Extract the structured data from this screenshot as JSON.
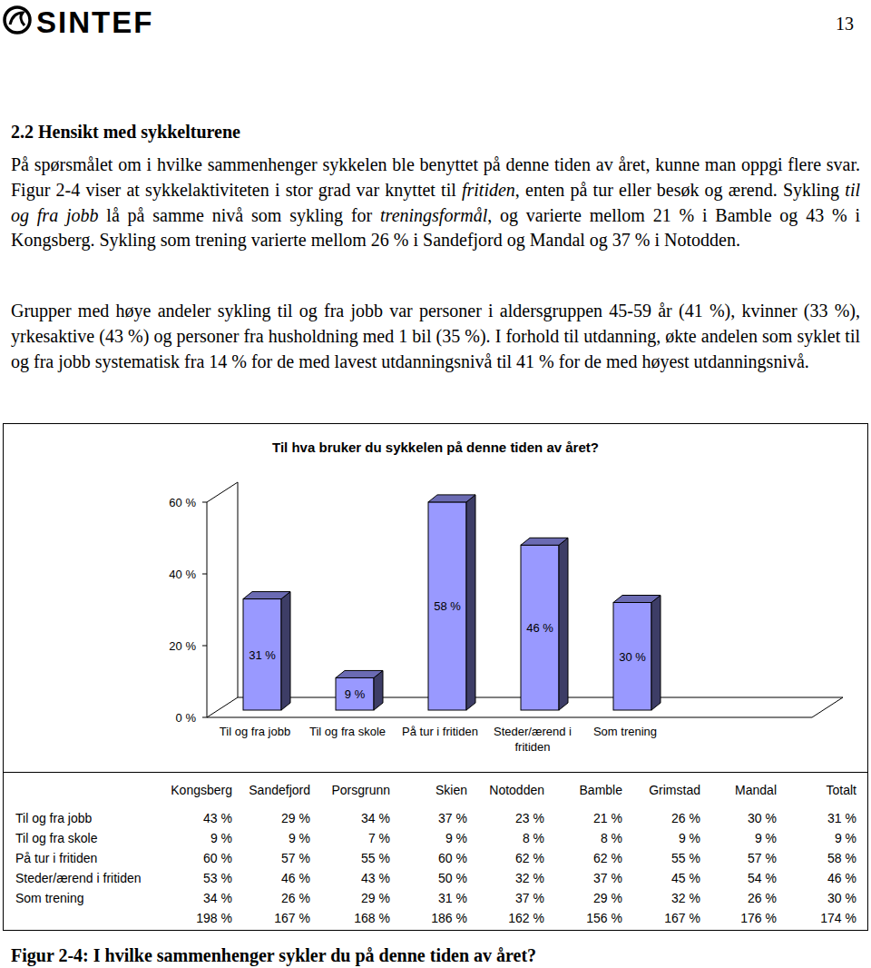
{
  "header": {
    "logo_text": "SINTEF",
    "page_number": "13"
  },
  "section": {
    "heading": "2.2 Hensikt med sykkelturene"
  },
  "paragraphs": [
    {
      "runs": [
        {
          "text": "På spørsmålet om i hvilke sammenhenger sykkelen ble benyttet på denne tiden av året, kunne man oppgi flere svar. Figur 2-4 viser at sykkelaktiviteten i stor grad var knyttet til "
        },
        {
          "text": "fritiden",
          "italic": true
        },
        {
          "text": ", enten på tur eller besøk og ærend. Sykling "
        },
        {
          "text": "til og fra jobb",
          "italic": true
        },
        {
          "text": " lå på samme nivå som sykling for "
        },
        {
          "text": "treningsformål",
          "italic": true
        },
        {
          "text": ", og varierte mellom 21 % i Bamble og 43 % i Kongsberg. Sykling som trening varierte mellom 26 % i Sandefjord og Mandal og 37 % i Notodden."
        }
      ]
    },
    {
      "runs": [
        {
          "text": "Grupper med høye andeler sykling til og fra jobb var personer i aldersgruppen 45-59 år (41 %), kvinner (33 %), yrkesaktive (43 %) og personer fra husholdning med 1 bil (35 %). I forhold til utdanning, økte andelen som syklet til og fra jobb systematisk fra 14 % for de med lavest utdanningsnivå til 41 % for de med høyest utdanningsnivå."
        }
      ]
    }
  ],
  "chart_data": {
    "type": "bar",
    "title": "Til hva bruker du sykkelen på denne tiden av året?",
    "categories": [
      "Til og fra jobb",
      "Til og fra skole",
      "På tur i fritiden",
      "Steder/ærend i fritiden",
      "Som trening"
    ],
    "values": [
      31,
      9,
      58,
      46,
      30
    ],
    "value_labels": [
      "31 %",
      "9 %",
      "58 %",
      "46 %",
      "30 %"
    ],
    "color": "#9999ff",
    "ylim": [
      0,
      60
    ],
    "yticks": [
      {
        "value": 0,
        "label": "0 %"
      },
      {
        "value": 20,
        "label": "20 %"
      },
      {
        "value": 40,
        "label": "40 %"
      },
      {
        "value": 60,
        "label": "60 %"
      }
    ],
    "grid": false,
    "data_labels": true
  },
  "table": {
    "columns": [
      "Kongsberg",
      "Sandefjord",
      "Porsgrunn",
      "Skien",
      "Notodden",
      "Bamble",
      "Grimstad",
      "Mandal",
      "Totalt"
    ],
    "rows": [
      {
        "label": "Til og fra jobb",
        "cells": [
          "43 %",
          "29 %",
          "34 %",
          "37 %",
          "23 %",
          "21 %",
          "26 %",
          "30 %",
          "31 %"
        ]
      },
      {
        "label": "Til og fra skole",
        "cells": [
          "9 %",
          "9 %",
          "7 %",
          "9 %",
          "8 %",
          "8 %",
          "9 %",
          "9 %",
          "9 %"
        ]
      },
      {
        "label": "På tur i fritiden",
        "cells": [
          "60 %",
          "57 %",
          "55 %",
          "60 %",
          "62 %",
          "62 %",
          "55 %",
          "57 %",
          "58 %"
        ]
      },
      {
        "label": "Steder/ærend i fritiden",
        "cells": [
          "53 %",
          "46 %",
          "43 %",
          "50 %",
          "32 %",
          "37 %",
          "45 %",
          "54 %",
          "46 %"
        ]
      },
      {
        "label": "Som trening",
        "cells": [
          "34 %",
          "26 %",
          "29 %",
          "31 %",
          "37 %",
          "29 %",
          "32 %",
          "26 %",
          "30 %"
        ]
      }
    ],
    "sum_row": [
      "198 %",
      "167 %",
      "168 %",
      "186 %",
      "162 %",
      "156 %",
      "167 %",
      "176 %",
      "174 %"
    ]
  },
  "caption": "Figur 2-4: I hvilke sammenhenger sykler du på denne tiden av året?"
}
